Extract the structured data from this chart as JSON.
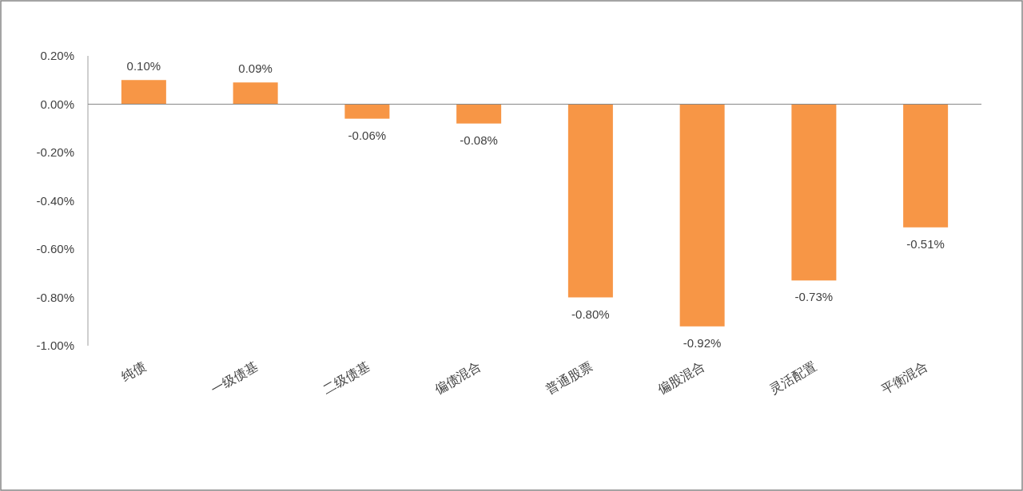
{
  "chart_data": {
    "type": "bar",
    "categories": [
      "纯债",
      "一级债基",
      "二级债基",
      "偏债混合",
      "普通股票",
      "偏股混合",
      "灵活配置",
      "平衡混合"
    ],
    "values": [
      0.1,
      0.09,
      -0.06,
      -0.08,
      -0.8,
      -0.92,
      -0.73,
      -0.51
    ],
    "color": "#f79646",
    "value_labels": [
      "0.10%",
      "0.09%",
      "-0.06%",
      "-0.08%",
      "-0.80%",
      "-0.92%",
      "-0.73%",
      "-0.51%"
    ],
    "ylim": [
      -1.0,
      0.2
    ],
    "yticks": [
      {
        "value": 0.2,
        "label": "0.20%"
      },
      {
        "value": 0.0,
        "label": "0.00%"
      },
      {
        "value": -0.2,
        "label": "-0.20%"
      },
      {
        "value": -0.4,
        "label": "-0.40%"
      },
      {
        "value": -0.6,
        "label": "-0.60%"
      },
      {
        "value": -0.8,
        "label": "-0.80%"
      },
      {
        "value": -1.0,
        "label": "-1.00%"
      }
    ]
  }
}
